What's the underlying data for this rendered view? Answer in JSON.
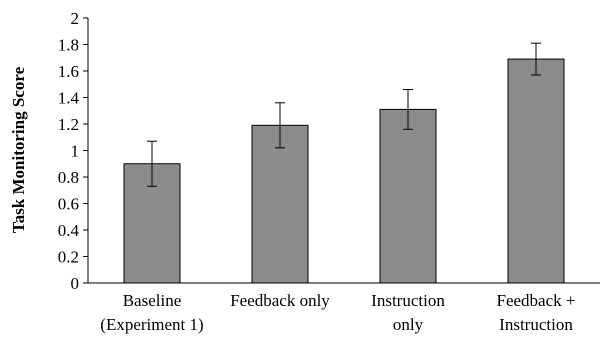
{
  "chart_data": {
    "type": "bar",
    "categories": [
      [
        "Baseline",
        "(Experiment 1)"
      ],
      [
        "Feedback only"
      ],
      [
        "Instruction",
        "only"
      ],
      [
        "Feedback +",
        "Instruction"
      ]
    ],
    "values": [
      0.9,
      1.19,
      1.31,
      1.69
    ],
    "error_low": [
      0.73,
      1.02,
      1.16,
      1.57
    ],
    "error_high": [
      1.07,
      1.36,
      1.46,
      1.81
    ],
    "ylabel": "Task Monitoring Score",
    "xlabel": "",
    "ylim": [
      0,
      2
    ],
    "yticks": [
      "0",
      "0.2",
      "0.4",
      "0.6",
      "0.8",
      "1",
      "1.2",
      "1.4",
      "1.6",
      "1.8",
      "2"
    ],
    "bar_color": "#8c8c8c",
    "bar_edge_color": "#000000",
    "grid": false,
    "legend": "none"
  }
}
